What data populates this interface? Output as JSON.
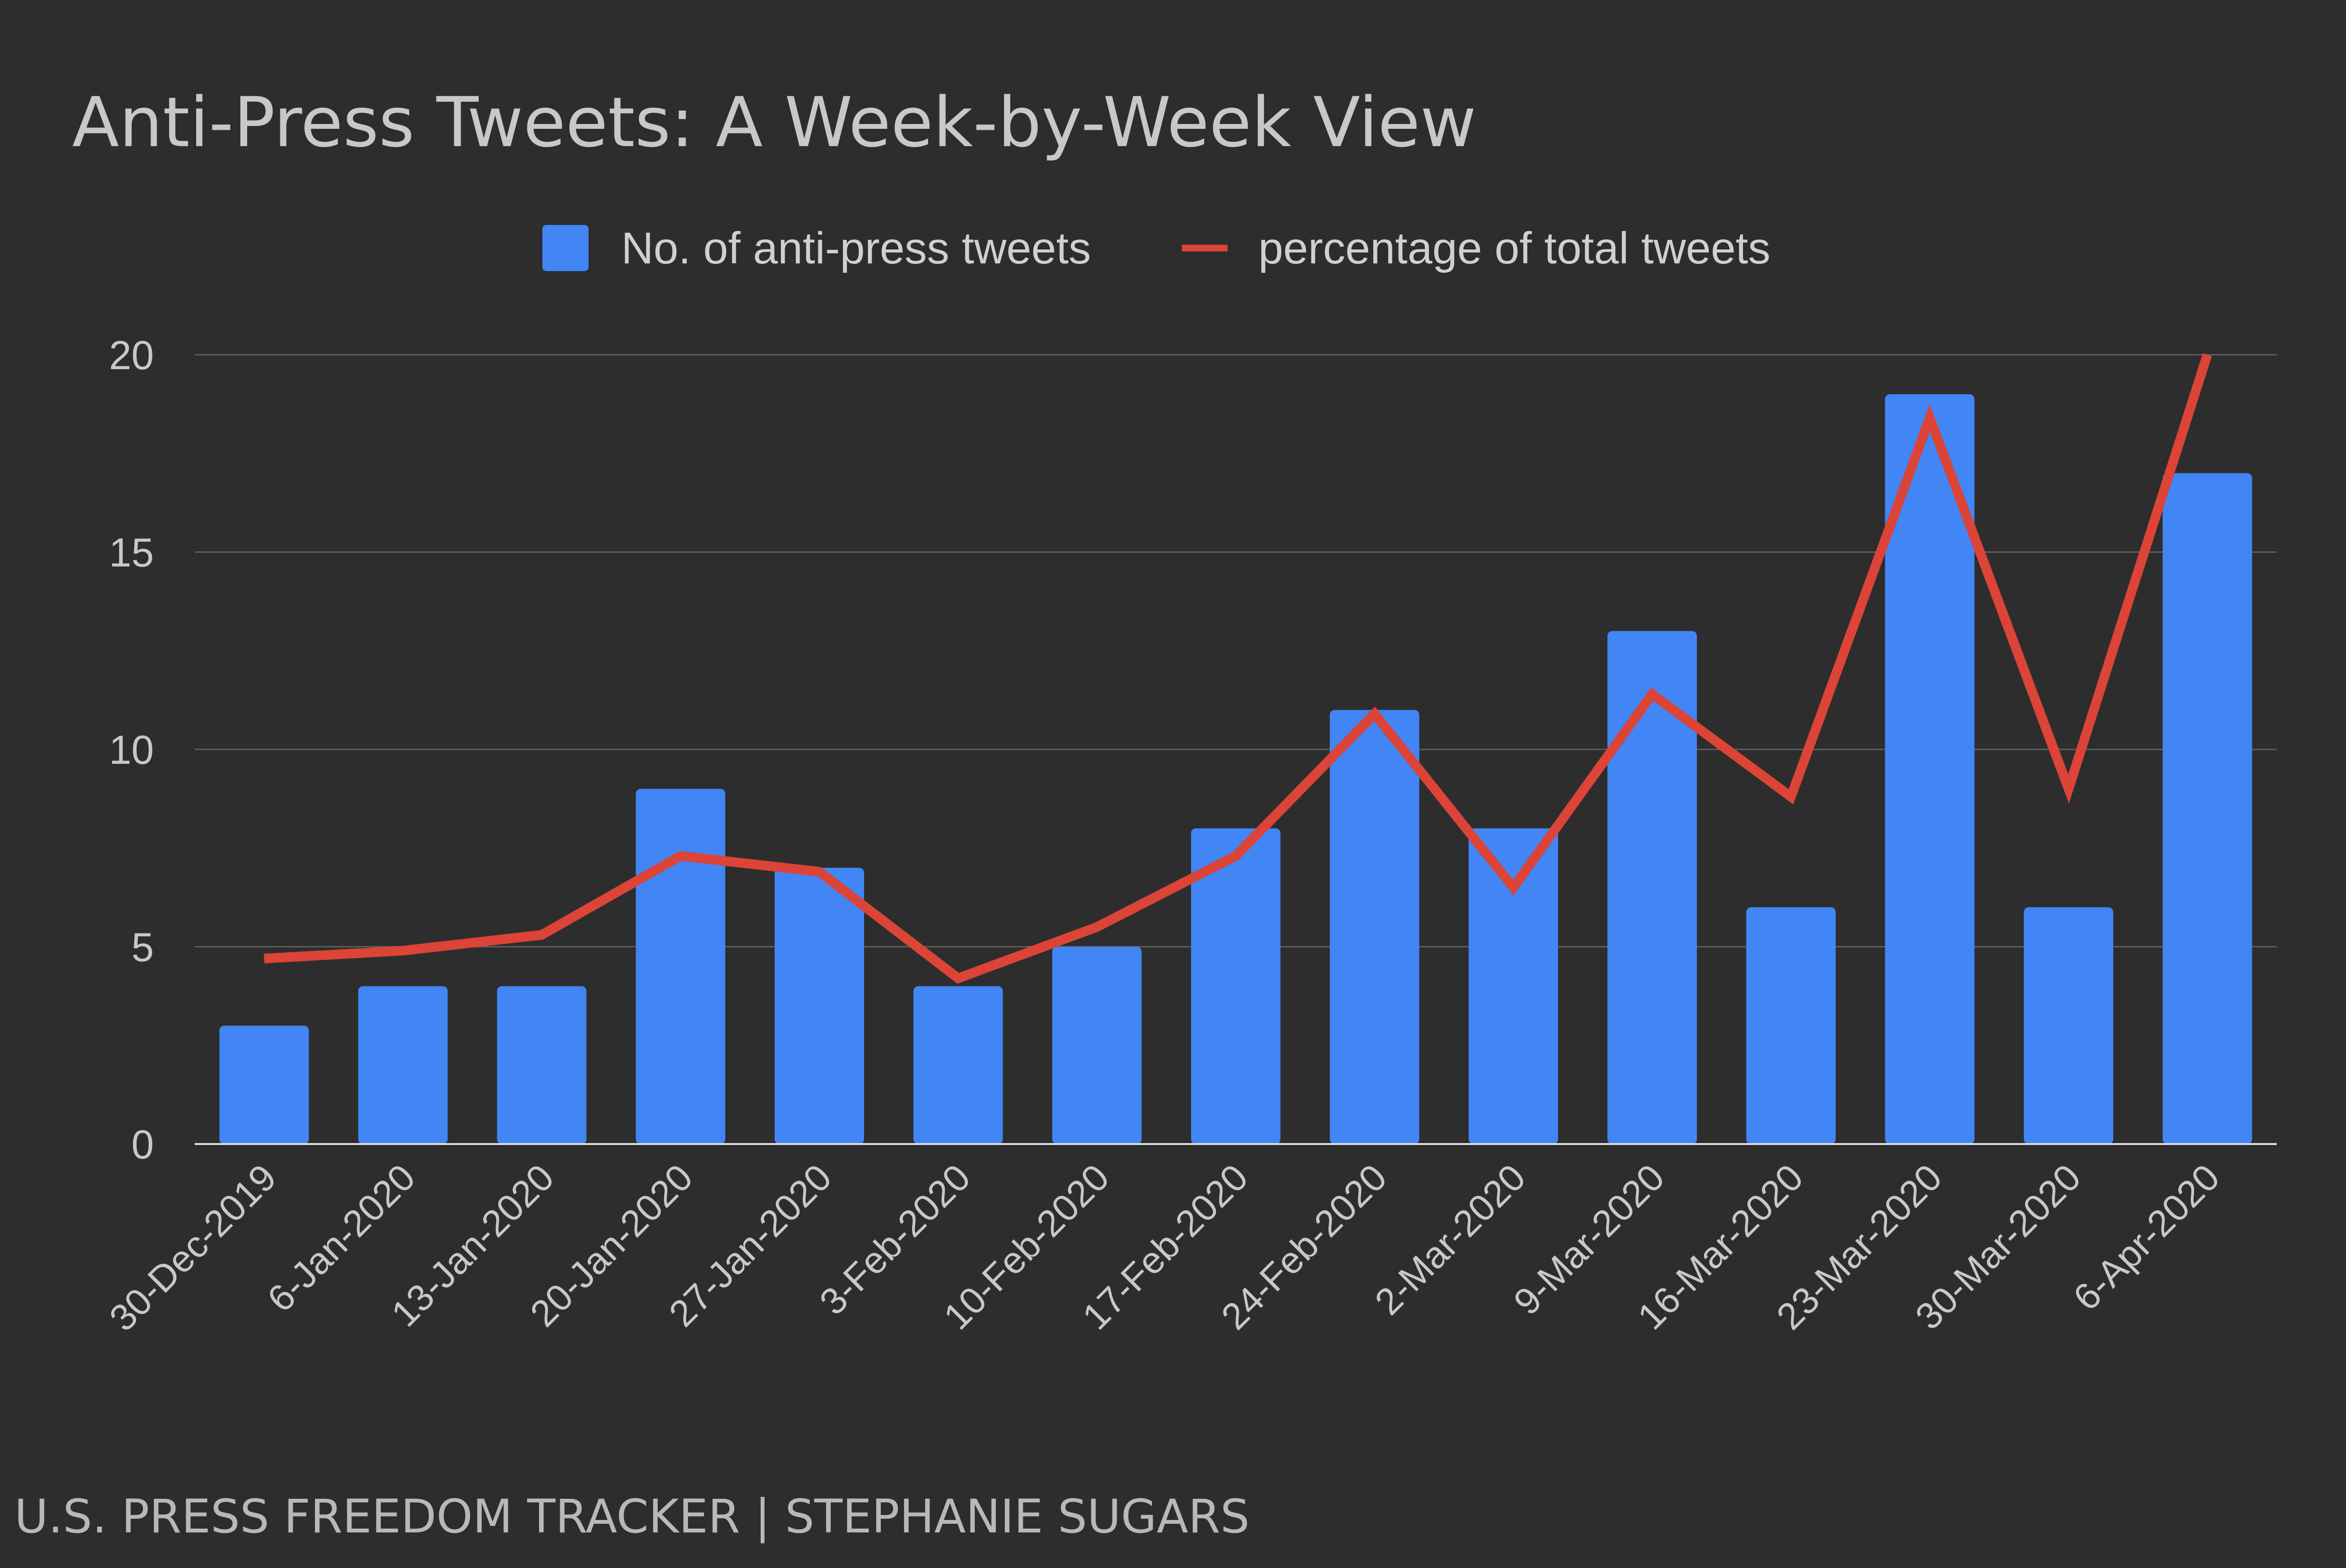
{
  "chart_data": {
    "type": "bar",
    "title": "Anti-Press Tweets: A Week-by-Week View",
    "categories": [
      "30-Dec-2019",
      "6-Jan-2020",
      "13-Jan-2020",
      "20-Jan-2020",
      "27-Jan-2020",
      "3-Feb-2020",
      "10-Feb-2020",
      "17-Feb-2020",
      "24-Feb-2020",
      "2-Mar-2020",
      "9-Mar-2020",
      "16-Mar-2020",
      "23-Mar-2020",
      "30-Mar-2020",
      "6-Apr-2020"
    ],
    "series": [
      {
        "name": "No. of anti-press tweets",
        "type": "bar",
        "color": "#4285f4",
        "values": [
          3,
          4,
          4,
          9,
          7,
          4,
          5,
          8,
          11,
          8,
          13,
          6,
          19,
          6,
          17
        ]
      },
      {
        "name": "percentage of total tweets",
        "type": "line",
        "color": "#db4437",
        "values": [
          4.7,
          4.9,
          5.3,
          7.3,
          6.9,
          4.2,
          5.5,
          7.3,
          10.9,
          6.5,
          11.4,
          8.8,
          18.4,
          9.0,
          20.0
        ]
      }
    ],
    "ylim": [
      0,
      20
    ],
    "yticks": [
      "0",
      "5",
      "10",
      "15",
      "20"
    ],
    "legend": "top",
    "grid": true,
    "background": "#2d2d2d"
  },
  "footer": {
    "credit": "U.S. PRESS FREEDOM TRACKER | STEPHANIE SUGARS"
  }
}
